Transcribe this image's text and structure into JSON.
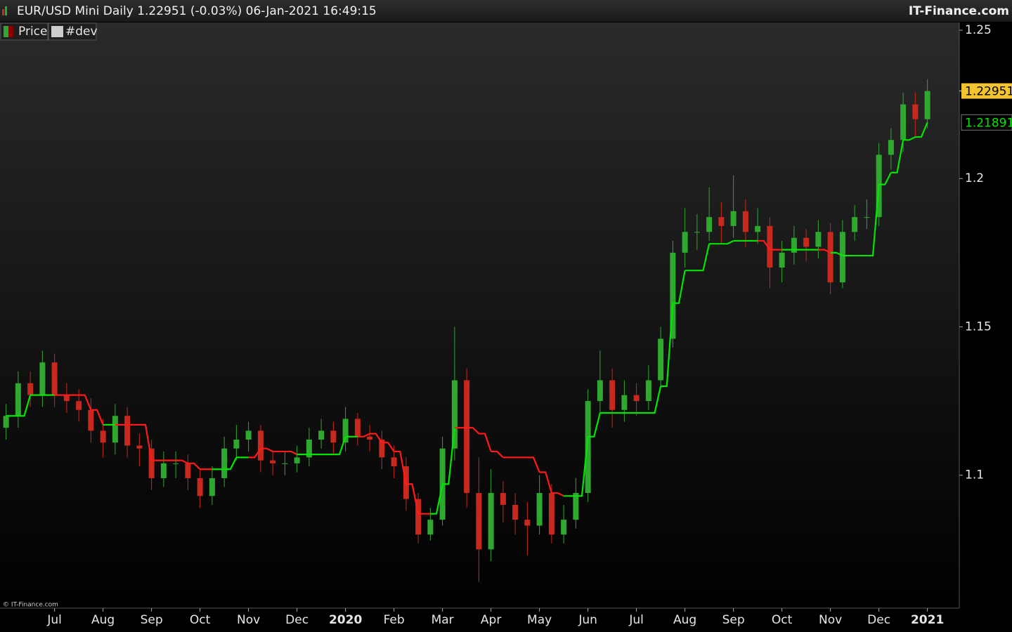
{
  "chart_data": {
    "type": "candlestick",
    "title": "EUR/USD Mini Daily 1.22951 (-0.03%) 06-Jan-2021 16:49:15",
    "source": "IT-Finance.com",
    "copyright": "© IT-Finance.com",
    "categories": [
      null,
      null,
      null,
      null,
      "Jul",
      null,
      null,
      null,
      "Aug",
      null,
      null,
      null,
      "Sep",
      null,
      null,
      null,
      "Oct",
      null,
      null,
      null,
      "Nov",
      null,
      null,
      null,
      "Dec",
      null,
      null,
      null,
      "2020",
      null,
      null,
      null,
      "Feb",
      null,
      null,
      null,
      "Mar",
      null,
      null,
      null,
      "Apr",
      null,
      null,
      null,
      "May",
      null,
      null,
      null,
      "Jun",
      null,
      null,
      null,
      "Jul",
      null,
      null,
      null,
      "Aug",
      null,
      null,
      null,
      "Sep",
      null,
      null,
      null,
      "Oct",
      null,
      null,
      null,
      "Nov",
      null,
      null,
      null,
      "Dec",
      null,
      null,
      null,
      "2021"
    ],
    "series": [
      {
        "name": "Price",
        "up_color": "#2fa82f",
        "down_color": "#c8281e",
        "open": [
          1.116,
          1.12,
          1.131,
          1.127,
          1.138,
          1.127,
          1.125,
          1.122,
          1.115,
          1.111,
          1.12,
          1.11,
          1.109,
          1.099,
          1.104,
          1.104,
          1.099,
          1.093,
          1.099,
          1.109,
          1.112,
          1.115,
          1.105,
          1.104,
          1.104,
          1.106,
          1.112,
          1.115,
          1.111,
          1.119,
          1.113,
          1.112,
          1.106,
          1.103,
          1.092,
          1.08,
          1.085,
          1.109,
          1.132,
          1.094,
          1.075,
          1.094,
          1.09,
          1.085,
          1.083,
          1.094,
          1.08,
          1.085,
          1.094,
          1.125,
          1.132,
          1.122,
          1.127,
          1.125,
          1.132,
          1.146,
          1.175,
          1.182,
          1.182,
          1.187,
          1.184,
          1.189,
          1.182,
          1.184,
          1.17,
          1.175,
          1.18,
          1.177,
          1.182,
          1.165,
          1.182,
          1.187,
          1.187,
          1.208,
          1.213,
          1.225,
          1.22
        ],
        "high": [
          1.124,
          1.135,
          1.135,
          1.142,
          1.141,
          1.131,
          1.129,
          1.126,
          1.119,
          1.124,
          1.123,
          1.114,
          1.112,
          1.108,
          1.108,
          1.107,
          1.102,
          1.103,
          1.113,
          1.117,
          1.118,
          1.117,
          1.108,
          1.108,
          1.11,
          1.116,
          1.119,
          1.118,
          1.123,
          1.121,
          1.117,
          1.115,
          1.11,
          1.106,
          1.094,
          1.089,
          1.113,
          1.15,
          1.136,
          1.106,
          1.102,
          1.098,
          1.094,
          1.091,
          1.1,
          1.097,
          1.09,
          1.099,
          1.129,
          1.142,
          1.136,
          1.132,
          1.131,
          1.137,
          1.15,
          1.179,
          1.19,
          1.188,
          1.197,
          1.192,
          1.201,
          1.193,
          1.19,
          1.187,
          1.179,
          1.184,
          1.183,
          1.186,
          1.185,
          1.186,
          1.191,
          1.193,
          1.212,
          1.217,
          1.229,
          1.229,
          1.2335
        ],
        "low": [
          1.112,
          1.116,
          1.123,
          1.123,
          1.123,
          1.121,
          1.118,
          1.111,
          1.106,
          1.107,
          1.106,
          1.103,
          1.095,
          1.096,
          1.099,
          1.095,
          1.089,
          1.09,
          1.096,
          1.105,
          1.108,
          1.101,
          1.1,
          1.1,
          1.101,
          1.103,
          1.109,
          1.107,
          1.108,
          1.11,
          1.108,
          1.102,
          1.099,
          1.088,
          1.077,
          1.078,
          1.083,
          1.105,
          1.089,
          1.064,
          1.071,
          1.084,
          1.08,
          1.073,
          1.08,
          1.077,
          1.077,
          1.082,
          1.091,
          1.121,
          1.116,
          1.118,
          1.12,
          1.122,
          1.129,
          1.143,
          1.17,
          1.176,
          1.179,
          1.178,
          1.18,
          1.177,
          1.178,
          1.163,
          1.165,
          1.171,
          1.172,
          1.173,
          1.161,
          1.163,
          1.179,
          1.183,
          1.184,
          1.203,
          1.209,
          1.214,
          1.217
        ],
        "close": [
          1.12,
          1.131,
          1.127,
          1.138,
          1.127,
          1.125,
          1.122,
          1.115,
          1.111,
          1.12,
          1.11,
          1.109,
          1.099,
          1.104,
          1.104,
          1.099,
          1.093,
          1.099,
          1.109,
          1.112,
          1.115,
          1.105,
          1.104,
          1.104,
          1.106,
          1.112,
          1.115,
          1.111,
          1.119,
          1.113,
          1.112,
          1.106,
          1.103,
          1.092,
          1.08,
          1.085,
          1.109,
          1.132,
          1.094,
          1.075,
          1.094,
          1.09,
          1.085,
          1.083,
          1.094,
          1.08,
          1.085,
          1.094,
          1.125,
          1.132,
          1.122,
          1.127,
          1.125,
          1.132,
          1.146,
          1.175,
          1.182,
          1.182,
          1.187,
          1.184,
          1.189,
          1.182,
          1.184,
          1.17,
          1.175,
          1.18,
          1.177,
          1.182,
          1.165,
          1.182,
          1.187,
          1.187,
          1.208,
          1.213,
          1.225,
          1.22,
          1.22951
        ],
        "badge_color": "#f4c430"
      },
      {
        "name": "#dev",
        "color": "#cccccc",
        "up_color": "#00e600",
        "down_color": "#ff1a1a",
        "values": [
          1.12,
          1.12,
          1.127,
          1.127,
          1.127,
          1.127,
          1.127,
          1.122,
          1.117,
          1.117,
          1.117,
          1.117,
          1.105,
          1.105,
          1.105,
          1.104,
          1.102,
          1.102,
          1.102,
          1.106,
          1.106,
          1.109,
          1.108,
          1.108,
          1.107,
          1.107,
          1.107,
          1.107,
          1.113,
          1.113,
          1.114,
          1.111,
          1.108,
          1.097,
          1.087,
          1.087,
          1.097,
          1.116,
          1.116,
          1.114,
          1.108,
          1.106,
          1.106,
          1.106,
          1.101,
          1.094,
          1.093,
          1.093,
          1.113,
          1.121,
          1.121,
          1.121,
          1.121,
          1.121,
          1.13,
          1.158,
          1.169,
          1.169,
          1.178,
          1.178,
          1.179,
          1.179,
          1.179,
          1.176,
          1.176,
          1.176,
          1.176,
          1.176,
          1.175,
          1.174,
          1.174,
          1.174,
          1.198,
          1.202,
          1.213,
          1.214,
          1.21891
        ]
      }
    ],
    "ylim": [
      1.0552,
      1.2526
    ],
    "yticks": [
      1.1,
      1.15,
      1.2,
      1.25
    ],
    "grid": false
  }
}
